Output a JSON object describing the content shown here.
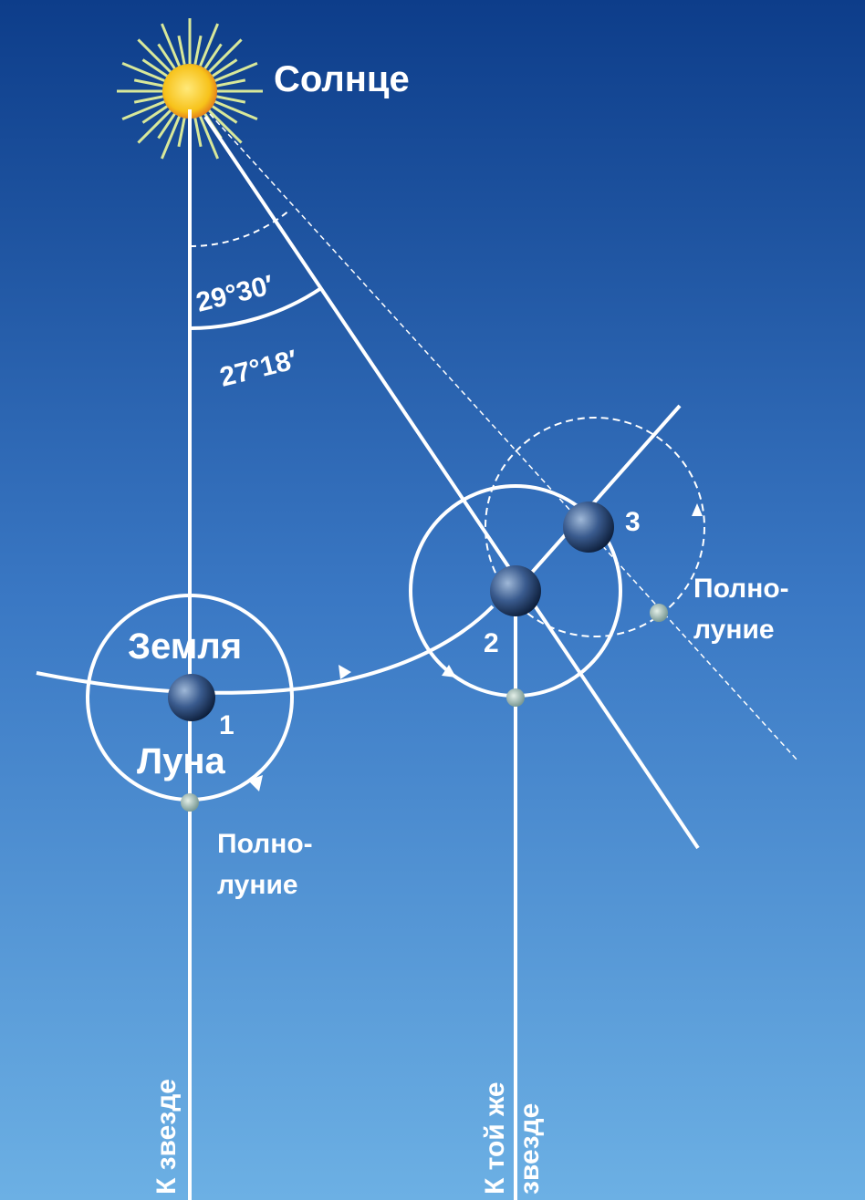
{
  "sun": {
    "label": "Солнце"
  },
  "angles": [
    "29°30′",
    "27°18′"
  ],
  "earth": {
    "label": "Земля"
  },
  "moon": {
    "label": "Луна"
  },
  "positions": [
    "1",
    "2",
    "3"
  ],
  "full_moon_labels": [
    [
      "Полно-",
      "луние"
    ],
    [
      "Полно-",
      "луние"
    ]
  ],
  "star_labels": {
    "first": "К звезде",
    "second": [
      "К той же",
      "звезде"
    ]
  }
}
